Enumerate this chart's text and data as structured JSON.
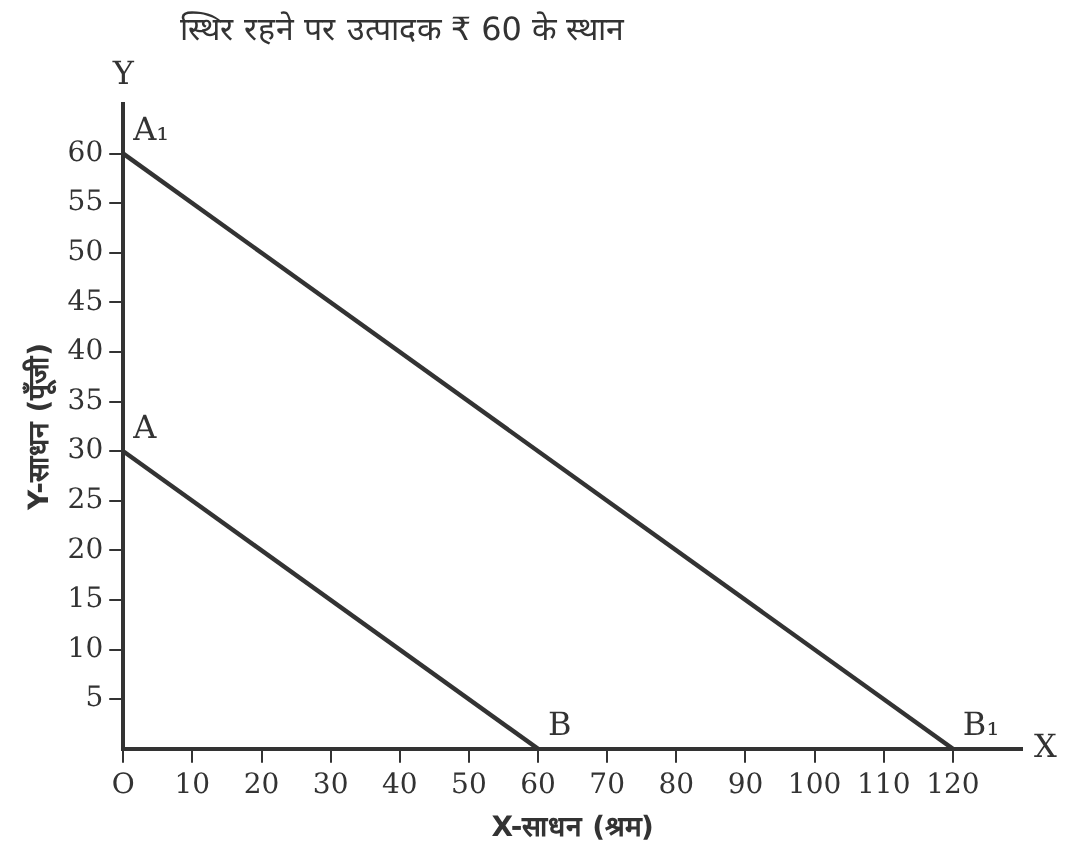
{
  "chart_data": {
    "type": "line",
    "xlabel": "X-साधन (श्रम)",
    "ylabel": "Y-साधन (पूँजी)",
    "series": [
      {
        "color": "#333333",
        "x": [
          0,
          60
        ],
        "values": [
          30,
          0
        ]
      },
      {
        "color": "#333333",
        "x": [
          0,
          120
        ],
        "values": [
          60,
          0
        ]
      }
    ],
    "xlim": [
      0,
      130
    ],
    "ylim": [
      0,
      65
    ],
    "xticks": [
      {
        "value": 0,
        "label": "O"
      },
      10,
      20,
      30,
      40,
      50,
      60,
      70,
      80,
      90,
      100,
      110,
      120
    ],
    "yticks": [
      5,
      10,
      15,
      20,
      25,
      30,
      35,
      40,
      45,
      50,
      55,
      60
    ],
    "grid": false,
    "legend": false,
    "marker": "none",
    "line_style": "solid",
    "annotations": [
      "स्थिर रहने पर उत्पादक ₹ 60 के स्थान",
      {
        "text": "A",
        "x": 0,
        "y": 30
      },
      {
        "text": "B",
        "x": 60,
        "y": 0
      },
      {
        "text": "A₁",
        "x": 0,
        "y": 60
      },
      {
        "text": "B₁",
        "x": 120,
        "y": 0
      },
      "Y",
      "X"
    ]
  }
}
